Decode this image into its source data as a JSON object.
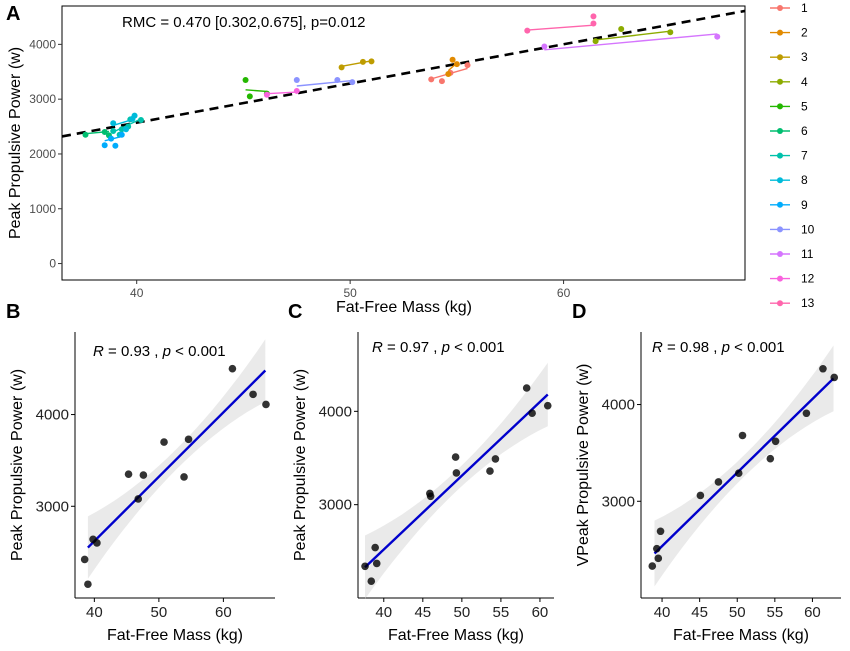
{
  "chart_data": [
    {
      "type": "scatter",
      "panel": "A",
      "annotation": "RMC = 0.470 [0.302,0.675], p=0.012",
      "xlabel": "Fat-Free Mass (kg)",
      "ylabel": "Peak Propulsive Power (w)",
      "xlim": [
        36.5,
        68.5
      ],
      "ylim": [
        -300,
        4700
      ],
      "x_ticks": [
        40,
        50,
        60
      ],
      "y_ticks": [
        0,
        1000,
        2000,
        3000,
        4000
      ],
      "grid": false,
      "legend_position": "right",
      "common_line": {
        "x": [
          36.5,
          68.5
        ],
        "y": [
          2320,
          4610
        ],
        "style": "dashed",
        "color": "#000000"
      },
      "series": [
        {
          "name": "1",
          "color": "#F8766D",
          "x": [
            53.8,
            54.3,
            54.7,
            55.5
          ],
          "y": [
            3360,
            3330,
            3480,
            3620
          ],
          "fit": [
            [
              53.8,
              3370
            ],
            [
              55.5,
              3560
            ]
          ]
        },
        {
          "name": "2",
          "color": "#E18A00",
          "x": [
            54.6,
            54.8,
            55.0
          ],
          "y": [
            3460,
            3720,
            3640
          ],
          "fit": [
            [
              54.6,
              3520
            ],
            [
              55.0,
              3660
            ]
          ]
        },
        {
          "name": "3",
          "color": "#BE9C00",
          "x": [
            49.6,
            50.6,
            51.0
          ],
          "y": [
            3580,
            3680,
            3690
          ],
          "fit": [
            [
              49.6,
              3600
            ],
            [
              51.0,
              3700
            ]
          ]
        },
        {
          "name": "4",
          "color": "#8CAB00",
          "x": [
            61.5,
            62.7,
            65.0
          ],
          "y": [
            4060,
            4280,
            4220
          ],
          "fit": [
            [
              61.5,
              4080
            ],
            [
              65.0,
              4240
            ]
          ]
        },
        {
          "name": "5",
          "color": "#24B700",
          "x": [
            45.1,
            45.3,
            46.1
          ],
          "y": [
            3350,
            3050,
            3100
          ],
          "fit": [
            [
              45.1,
              3170
            ],
            [
              46.1,
              3140
            ]
          ]
        },
        {
          "name": "6",
          "color": "#00BE70",
          "x": [
            37.6,
            38.5,
            38.7
          ],
          "y": [
            2350,
            2400,
            2340
          ],
          "fit": [
            [
              37.6,
              2370
            ],
            [
              38.7,
              2410
            ]
          ]
        },
        {
          "name": "7",
          "color": "#00C1AB",
          "x": [
            38.9,
            39.2,
            39.3,
            39.6,
            39.7,
            40.2
          ],
          "y": [
            2420,
            2350,
            2450,
            2500,
            2630,
            2620
          ],
          "fit": [
            [
              38.9,
              2400
            ],
            [
              40.2,
              2640
            ]
          ]
        },
        {
          "name": "8",
          "color": "#00BBDA",
          "x": [
            38.9,
            39.5,
            39.8,
            39.9
          ],
          "y": [
            2560,
            2450,
            2640,
            2700
          ],
          "fit": [
            [
              38.9,
              2520
            ],
            [
              39.9,
              2640
            ]
          ]
        },
        {
          "name": "9",
          "color": "#00ACFC",
          "x": [
            38.5,
            38.8,
            39.0,
            39.3
          ],
          "y": [
            2160,
            2280,
            2150,
            2350
          ],
          "fit": [
            [
              38.5,
              2240
            ],
            [
              39.3,
              2320
            ]
          ]
        },
        {
          "name": "10",
          "color": "#8B93FF",
          "x": [
            47.5,
            49.4,
            50.1
          ],
          "y": [
            3350,
            3350,
            3310
          ],
          "fit": [
            [
              47.5,
              3240
            ],
            [
              50.1,
              3340
            ]
          ]
        },
        {
          "name": "11",
          "color": "#D575FE",
          "x": [
            59.1,
            67.2
          ],
          "y": [
            3960,
            4140
          ],
          "fit": [
            [
              59.1,
              3900
            ],
            [
              67.2,
              4190
            ]
          ]
        },
        {
          "name": "12",
          "color": "#F962DD",
          "x": [
            46.1,
            47.5
          ],
          "y": [
            3080,
            3150
          ],
          "fit": [
            [
              46.1,
              3100
            ],
            [
              47.5,
              3130
            ]
          ]
        },
        {
          "name": "13",
          "color": "#FF65AC",
          "x": [
            58.3,
            61.4,
            61.4
          ],
          "y": [
            4250,
            4380,
            4510
          ],
          "fit": [
            [
              58.3,
              4260
            ],
            [
              61.4,
              4350
            ]
          ]
        }
      ]
    },
    {
      "type": "scatter",
      "panel": "B",
      "annotation": {
        "r_symbol": "R",
        "r_value": " = 0.93 , ",
        "p_symbol": "p",
        "p_value": " < 0.001"
      },
      "xlabel": "Fat-Free Mass (kg)",
      "ylabel": "Peak Propulsive Power (w)",
      "xlim": [
        37,
        68
      ],
      "ylim": [
        2000,
        4900
      ],
      "x_ticks": [
        40,
        50,
        60
      ],
      "y_ticks": [
        3000,
        4000
      ],
      "grid": false,
      "points": {
        "x": [
          38.5,
          39.0,
          39.8,
          40.4,
          45.3,
          46.8,
          47.6,
          50.8,
          53.9,
          54.6,
          61.4,
          64.6,
          66.6
        ],
        "y": [
          2420,
          2150,
          2640,
          2600,
          3350,
          3080,
          3340,
          3700,
          3320,
          3730,
          4500,
          4220,
          4110
        ]
      },
      "fit_line": {
        "x": [
          39.0,
          66.5
        ],
        "y": [
          2550,
          4480
        ],
        "color": "#0000CC"
      }
    },
    {
      "type": "scatter",
      "panel": "C",
      "annotation": {
        "r_symbol": "R",
        "r_value": " = 0.97 , ",
        "p_symbol": "p",
        "p_value": " < 0.001"
      },
      "xlabel": "Fat-Free Mass (kg)",
      "ylabel": "Peak Propulsive Power (w)",
      "xlim": [
        36.7,
        61.8
      ],
      "ylim": [
        2000,
        4850
      ],
      "x_ticks": [
        40,
        45,
        50,
        55,
        60
      ],
      "y_ticks": [
        3000,
        4000
      ],
      "grid": false,
      "points": {
        "x": [
          37.6,
          38.4,
          38.9,
          39.1,
          45.9,
          46.0,
          49.2,
          49.3,
          53.6,
          54.3,
          58.3,
          59.0,
          61.0
        ],
        "y": [
          2340,
          2180,
          2540,
          2370,
          3120,
          3090,
          3510,
          3340,
          3360,
          3490,
          4250,
          3980,
          4060
        ]
      },
      "fit_line": {
        "x": [
          37.6,
          61.0
        ],
        "y": [
          2330,
          4180
        ],
        "color": "#0000CC"
      }
    },
    {
      "type": "scatter",
      "panel": "D",
      "annotation": {
        "r_symbol": "R",
        "r_value": " = 0.98 , ",
        "p_symbol": "p",
        "p_value": " < 0.001"
      },
      "xlabel": "Fat-Free Mass (kg)",
      "ylabel": "VPeak Propulsive Power (w)",
      "xlim": [
        37.2,
        63.8
      ],
      "ylim": [
        2000,
        4750
      ],
      "x_ticks": [
        40,
        45,
        50,
        55,
        60
      ],
      "y_ticks": [
        3000,
        4000
      ],
      "grid": false,
      "points": {
        "x": [
          38.7,
          39.3,
          39.5,
          39.8,
          45.1,
          47.5,
          50.2,
          50.7,
          54.4,
          55.1,
          59.2,
          61.4,
          62.9
        ],
        "y": [
          2330,
          2510,
          2410,
          2690,
          3060,
          3200,
          3290,
          3680,
          3440,
          3620,
          3910,
          4370,
          4280
        ]
      },
      "fit_line": {
        "x": [
          39.0,
          62.8
        ],
        "y": [
          2460,
          4270
        ],
        "color": "#0000CC"
      }
    }
  ]
}
